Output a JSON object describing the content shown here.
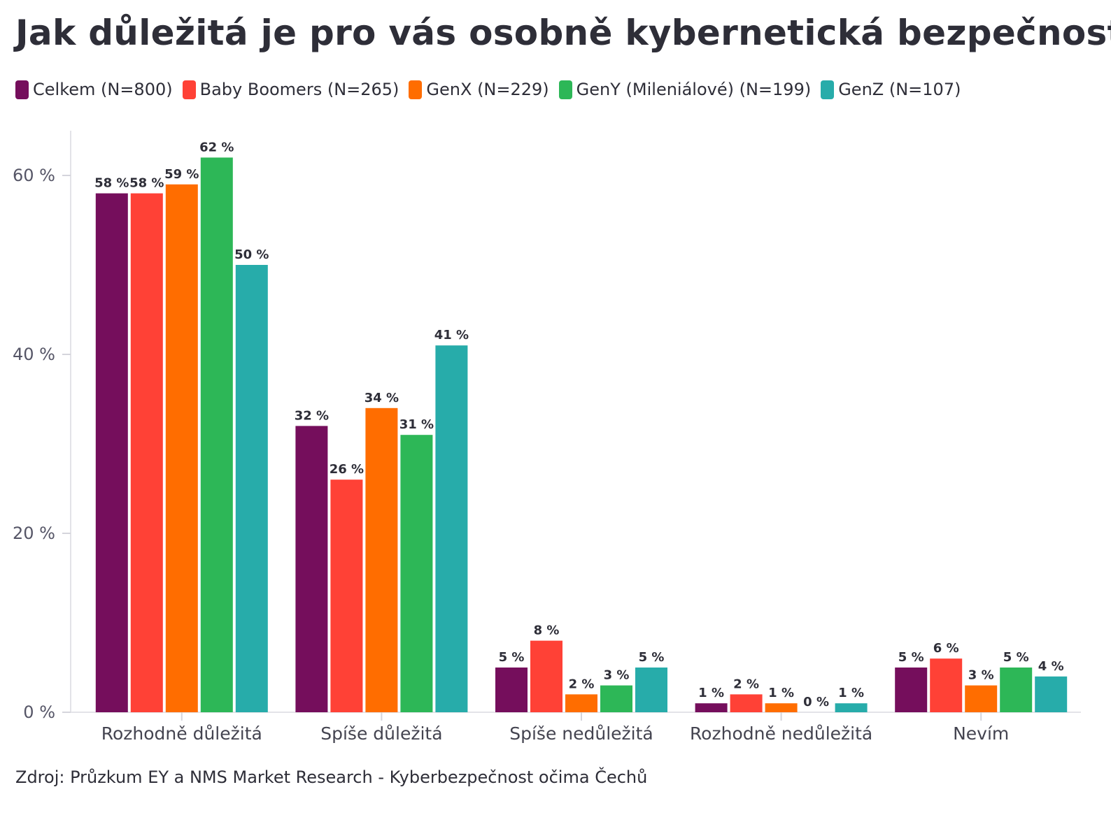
{
  "chart_data": {
    "type": "bar",
    "title": "Jak důležitá je pro vás osobně kybernetická bezpečnost?",
    "xlabel": "",
    "ylabel": "",
    "ylim": [
      0,
      65
    ],
    "yticks": [
      0,
      20,
      40,
      60
    ],
    "ytick_labels": [
      "0 %",
      "20 %",
      "40 %",
      "60 %"
    ],
    "grid": false,
    "legend_position": "top-left",
    "categories": [
      "Rozhodně důležitá",
      "Spíše důležitá",
      "Spíše nedůležitá",
      "Rozhodně nedůležitá",
      "Nevím"
    ],
    "series": [
      {
        "name": "Celkem (N=800)",
        "color": "#750e5c",
        "values": [
          58,
          32,
          5,
          1,
          5
        ],
        "labels": [
          "58 %",
          "32 %",
          "5 %",
          "1 %",
          "5 %"
        ]
      },
      {
        "name": "Baby Boomers (N=265)",
        "color": "#ff4136",
        "values": [
          58,
          26,
          8,
          2,
          6
        ],
        "labels": [
          "58 %",
          "26 %",
          "8 %",
          "2 %",
          "6 %"
        ]
      },
      {
        "name": "GenX (N=229)",
        "color": "#ff6d00",
        "values": [
          59,
          34,
          2,
          1,
          3
        ],
        "labels": [
          "59 %",
          "34 %",
          "2 %",
          "1 %",
          "3 %"
        ]
      },
      {
        "name": "GenY (Mileniálové) (N=199)",
        "color": "#2db757",
        "values": [
          62,
          31,
          3,
          0,
          5
        ],
        "labels": [
          "62 %",
          "31 %",
          "3 %",
          "0 %",
          "5 %"
        ]
      },
      {
        "name": "GenZ (N=107)",
        "color": "#27acaa",
        "values": [
          50,
          41,
          5,
          1,
          4
        ],
        "labels": [
          "50 %",
          "41 %",
          "5 %",
          "1 %",
          "4 %"
        ]
      }
    ],
    "source": "Zdroj: Průzkum EY a NMS Market Research - Kyberbezpečnost očima Čechů"
  }
}
